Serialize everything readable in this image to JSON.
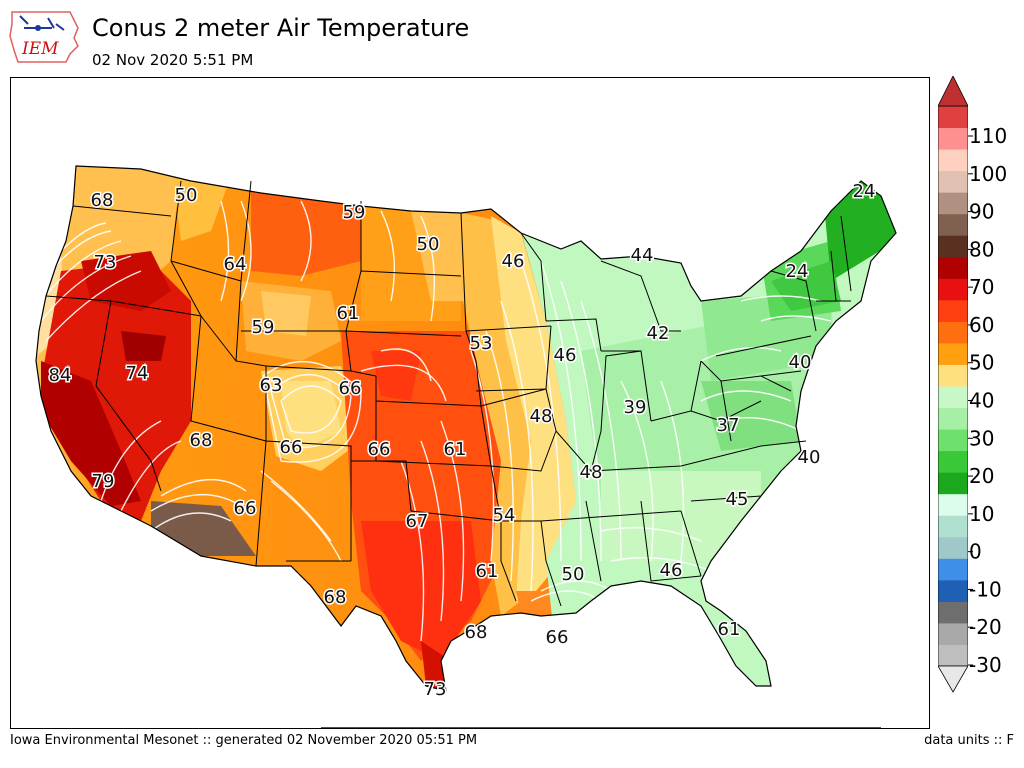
{
  "header": {
    "title": "Conus 2 meter Air Temperature",
    "subtitle": "02 Nov 2020 5:51 PM",
    "logo_text": "IEM"
  },
  "footer": {
    "left": "Iowa Environmental Mesonet :: generated 02 November 2020 05:51 PM",
    "right": "data units :: F"
  },
  "colorbar": {
    "ticks": [
      "110",
      "100",
      "90",
      "80",
      "70",
      "60",
      "50",
      "40",
      "30",
      "20",
      "10",
      "0",
      "-10",
      "-20",
      "-30"
    ],
    "colors": [
      "#bebebe",
      "#a9a9a9",
      "#6e6e6e",
      "#1f5fb4",
      "#3e8fe8",
      "#a0c8c8",
      "#b0e0d0",
      "#dcfcec",
      "#1ca81c",
      "#38c838",
      "#6ee06e",
      "#a6f0a6",
      "#c8f8c8",
      "#ffe080",
      "#ffa010",
      "#ff6f10",
      "#ff3f10",
      "#e81010",
      "#b00000",
      "#5a3020",
      "#806050",
      "#b09080",
      "#e0c0b0",
      "#ffd0c0",
      "#ff9090",
      "#e04040"
    ]
  },
  "map_labels": [
    {
      "text": "68"
    },
    {
      "text": "50"
    },
    {
      "text": "73"
    },
    {
      "text": "64"
    },
    {
      "text": "59"
    },
    {
      "text": "50"
    },
    {
      "text": "46"
    },
    {
      "text": "44"
    },
    {
      "text": "24"
    },
    {
      "text": "24"
    },
    {
      "text": "59"
    },
    {
      "text": "61"
    },
    {
      "text": "84"
    },
    {
      "text": "74"
    },
    {
      "text": "63"
    },
    {
      "text": "66"
    },
    {
      "text": "53"
    },
    {
      "text": "46"
    },
    {
      "text": "42"
    },
    {
      "text": "40"
    },
    {
      "text": "68"
    },
    {
      "text": "66"
    },
    {
      "text": "66"
    },
    {
      "text": "61"
    },
    {
      "text": "48"
    },
    {
      "text": "39"
    },
    {
      "text": "37"
    },
    {
      "text": "40"
    },
    {
      "text": "79"
    },
    {
      "text": "48"
    },
    {
      "text": "45"
    },
    {
      "text": "66"
    },
    {
      "text": "67"
    },
    {
      "text": "54"
    },
    {
      "text": "61"
    },
    {
      "text": "50"
    },
    {
      "text": "46"
    },
    {
      "text": "68"
    },
    {
      "text": "66"
    },
    {
      "text": "68"
    },
    {
      "text": "61"
    },
    {
      "text": "73"
    }
  ]
}
